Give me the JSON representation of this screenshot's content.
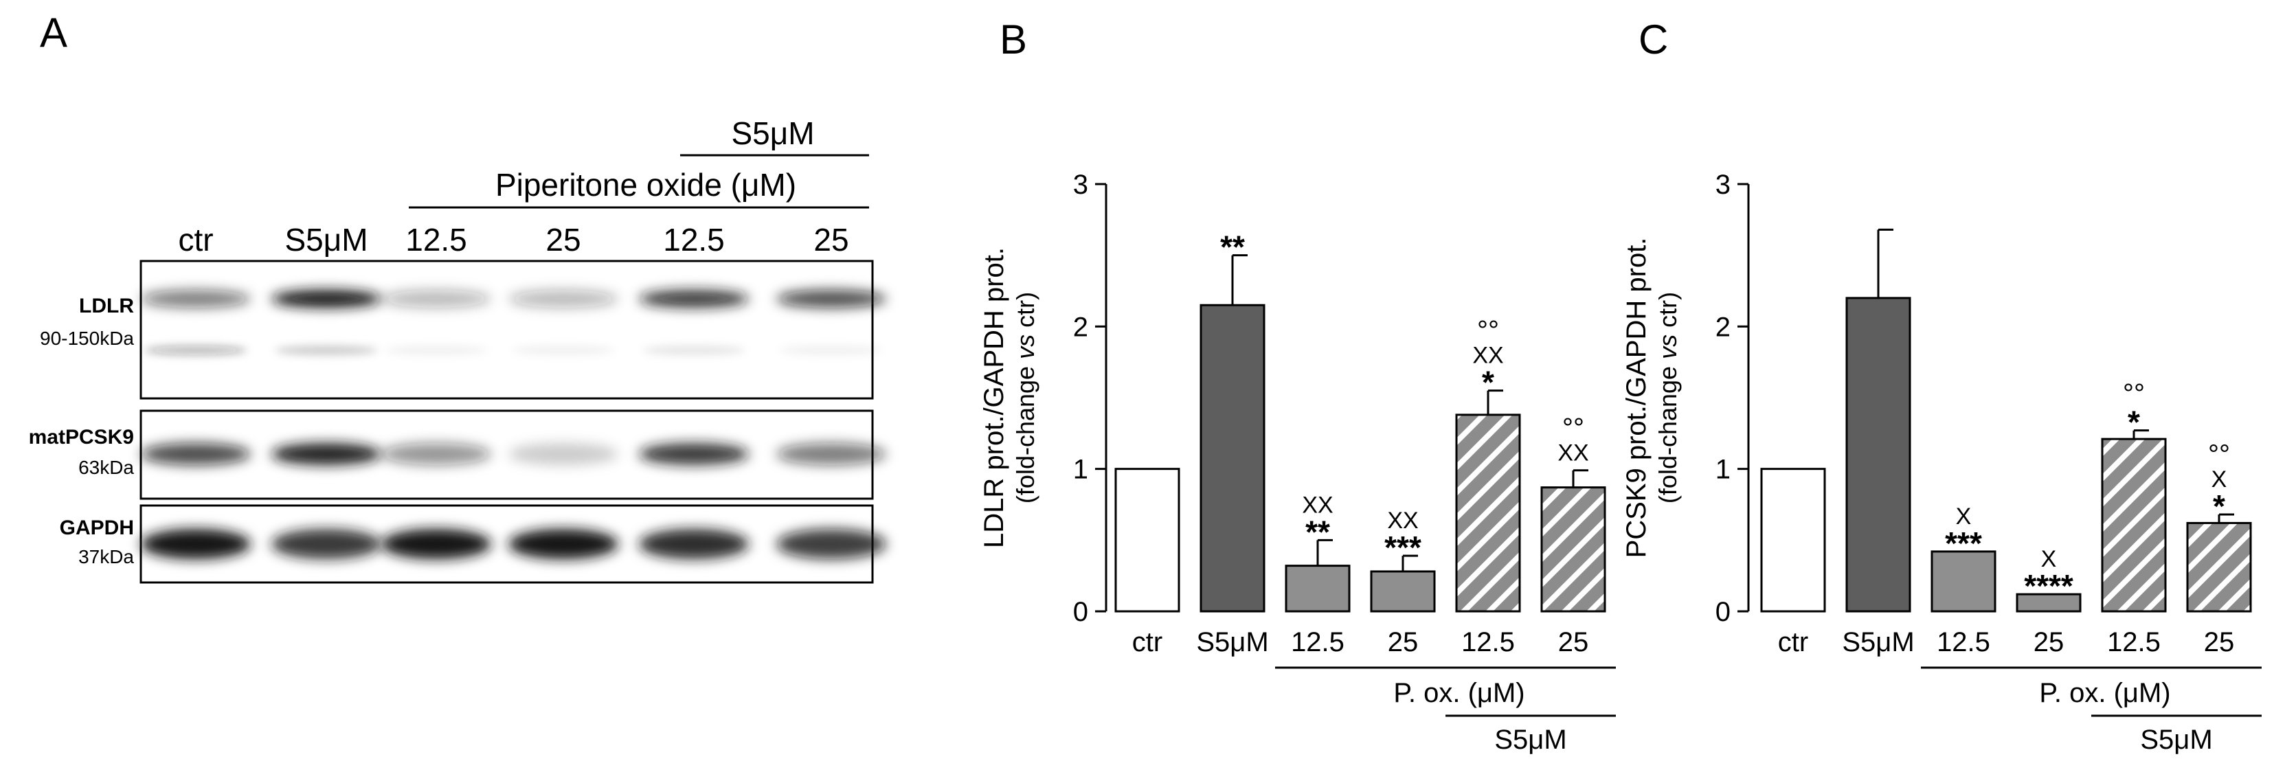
{
  "panel_letters": {
    "a": "A",
    "b": "B",
    "c": "C"
  },
  "blot": {
    "lane_labels": [
      "ctr",
      "S5μM",
      "12.5",
      "25",
      "12.5",
      "25"
    ],
    "treatment_header": "Piperitone oxide (μM)",
    "s5_header": "S5μM",
    "rows": [
      {
        "name": "LDLR",
        "size": "90-150kDa",
        "upper": [
          0.55,
          1.0,
          0.3,
          0.3,
          0.85,
          0.75
        ],
        "lower": [
          0.3,
          0.2,
          0.06,
          0.06,
          0.1,
          0.06
        ]
      },
      {
        "name": "matPCSK9",
        "size": "63kDa",
        "upper": [
          0.75,
          0.95,
          0.45,
          0.2,
          0.85,
          0.55
        ]
      },
      {
        "name": "GAPDH",
        "size": "37kDa",
        "upper": [
          1.0,
          0.85,
          1.0,
          1.0,
          0.9,
          0.8
        ]
      }
    ]
  },
  "chart_data": [
    {
      "type": "bar",
      "panel": "B",
      "ylabel_line1": "LDLR prot./GAPDH prot.",
      "ylabel_line2_pre": "(fold-change ",
      "ylabel_line2_italic": "vs",
      "ylabel_line2_post": " ctr)",
      "ylim": [
        0,
        3
      ],
      "yticks": [
        "0",
        "1",
        "2",
        "3"
      ],
      "categories": [
        "ctr",
        "S5μM",
        "12.5",
        "25",
        "12.5",
        "25"
      ],
      "values": [
        1.0,
        2.15,
        0.32,
        0.28,
        1.38,
        0.87
      ],
      "errors": [
        0,
        0.35,
        0.18,
        0.11,
        0.17,
        0.12
      ],
      "fills": [
        "white",
        "dark",
        "mid",
        "mid",
        "hatch",
        "hatch"
      ],
      "annotations": [
        [],
        [
          "**"
        ],
        [
          "**",
          "XX"
        ],
        [
          "***",
          "XX"
        ],
        [
          "*",
          "XX",
          "°°"
        ],
        [
          "XX",
          "°°"
        ]
      ],
      "group_label": "P. ox. (μM)",
      "s5_label": "S5μM"
    },
    {
      "type": "bar",
      "panel": "C",
      "ylabel_line1": "PCSK9 prot./GAPDH prot.",
      "ylabel_line2_pre": "(fold-change ",
      "ylabel_line2_italic": "vs",
      "ylabel_line2_post": " ctr)",
      "ylim": [
        0,
        3
      ],
      "yticks": [
        "0",
        "1",
        "2",
        "3"
      ],
      "categories": [
        "ctr",
        "S5μM",
        "12.5",
        "25",
        "12.5",
        "25"
      ],
      "values": [
        1.0,
        2.2,
        0.42,
        0.12,
        1.21,
        0.62
      ],
      "errors": [
        0,
        0.48,
        0,
        0,
        0.06,
        0.06
      ],
      "fills": [
        "white",
        "dark",
        "mid",
        "mid",
        "hatch",
        "hatch"
      ],
      "annotations": [
        [],
        [],
        [
          "***",
          "X"
        ],
        [
          "****",
          "X"
        ],
        [
          "*",
          "°°"
        ],
        [
          "*",
          "X",
          "°°"
        ]
      ],
      "group_label": "P. ox. (μM)",
      "s5_label": "S5μM"
    }
  ],
  "colors": {
    "dark_bar": "#5e5e5e",
    "mid_bar": "#8f8f8f",
    "hatch_bg": "#8c8c8c",
    "hatch_line": "#ffffff",
    "blot_band": "#141414"
  }
}
